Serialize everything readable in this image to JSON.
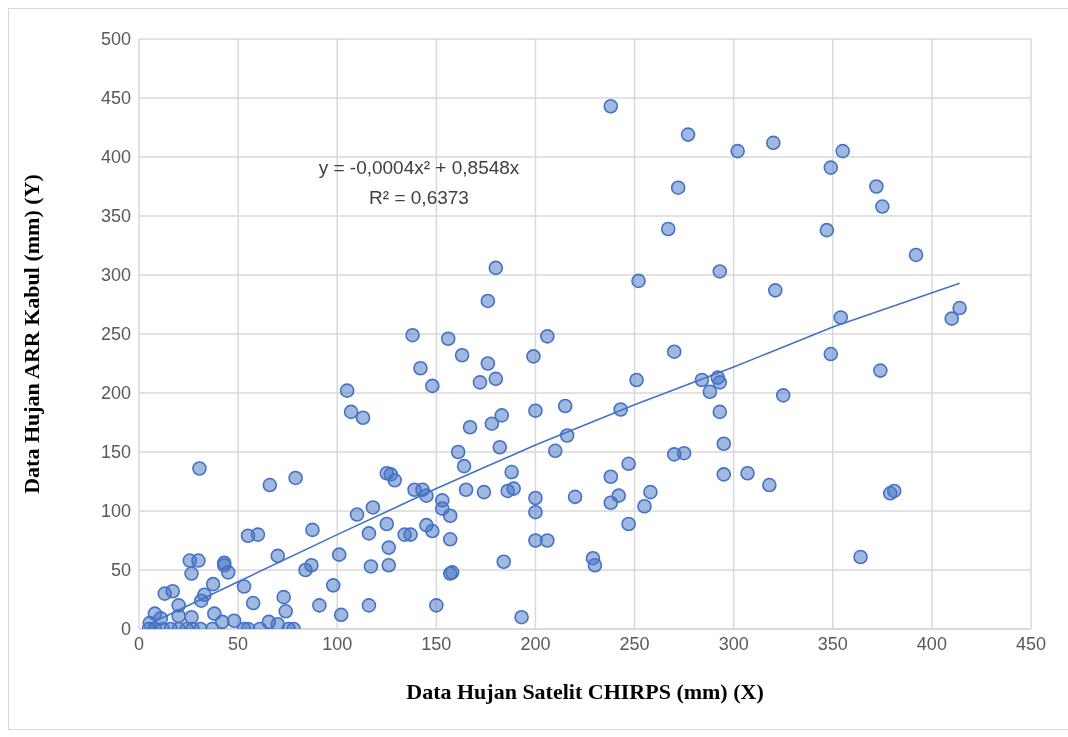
{
  "chart_data": {
    "type": "scatter",
    "xlabel": "Data Hujan Satelit CHIRPS (mm) (X)",
    "ylabel": "Data Hujan ARR Kabul (mm) (Y)",
    "xlim": [
      0,
      450
    ],
    "xticks": [
      0,
      50,
      100,
      150,
      200,
      250,
      300,
      350,
      400,
      450
    ],
    "ylim": [
      0,
      500
    ],
    "yticks": [
      0,
      50,
      100,
      150,
      200,
      250,
      300,
      350,
      400,
      450,
      500
    ],
    "grid": true,
    "marker": "circle",
    "annotations": [
      "y = -0,0004x² + 0,8548x",
      "R² = 0,6373"
    ],
    "series": [
      {
        "color": "#4472c4",
        "x": [
          238,
          277,
          302,
          320,
          355,
          349,
          272,
          372,
          375,
          267,
          347,
          392,
          293,
          180,
          252,
          321,
          176,
          414,
          410,
          354,
          138,
          206,
          156,
          270,
          349,
          163,
          199,
          176,
          142,
          374,
          172,
          180,
          251,
          284,
          292,
          293,
          288,
          148,
          105,
          325,
          107,
          113,
          200,
          243,
          293,
          215,
          183,
          178,
          167,
          216,
          295,
          182,
          210,
          161,
          270,
          275,
          164,
          238,
          30.5,
          66,
          79,
          125,
          127,
          129,
          188,
          295,
          307,
          318,
          165,
          174,
          186,
          189,
          139,
          143,
          145,
          379,
          381,
          258,
          220,
          242,
          238,
          200,
          118,
          153,
          153,
          157,
          255,
          247,
          200,
          110,
          145,
          148,
          125,
          116,
          134,
          137,
          247,
          87.5,
          55,
          60,
          126,
          157,
          200,
          206,
          70,
          101,
          87,
          84,
          117,
          126,
          229,
          230,
          184,
          364,
          25.6,
          30,
          43,
          43,
          26.5,
          45,
          53,
          98,
          37.4,
          13,
          17,
          33,
          31.4,
          73,
          57.6,
          20,
          74,
          91,
          116,
          150,
          157,
          158,
          102,
          193,
          8,
          11,
          38,
          42,
          48,
          26.5,
          20,
          5.4,
          65.5,
          70,
          5,
          8,
          12,
          16,
          20,
          24,
          27,
          31,
          37,
          53,
          55,
          61,
          75.5,
          78
        ],
        "values": [
          443,
          419,
          405,
          412,
          405,
          391,
          374,
          375,
          358,
          339,
          338,
          317,
          303,
          306,
          295,
          287,
          278,
          272,
          263,
          264,
          249,
          248,
          246,
          235,
          233,
          232,
          231,
          225,
          221,
          219,
          209,
          212,
          211,
          211,
          213,
          209,
          201,
          206,
          202,
          198,
          184,
          179,
          185,
          186,
          184,
          189,
          181,
          174,
          171,
          164,
          157,
          154,
          151,
          150,
          148,
          149,
          138,
          129,
          136,
          122,
          128,
          132,
          131,
          126,
          133,
          131,
          132,
          122,
          118,
          116,
          117,
          119,
          118,
          118,
          113,
          115,
          117,
          116,
          112,
          113,
          107,
          111,
          103,
          109,
          102,
          96,
          104,
          140,
          99,
          97,
          88,
          83,
          89,
          81,
          80,
          80,
          89,
          84,
          79,
          80,
          69,
          76,
          75,
          75,
          62,
          63,
          54,
          50,
          53,
          54,
          60,
          54,
          57,
          61,
          58,
          58,
          56,
          54,
          47,
          48,
          36,
          37,
          38,
          30,
          32,
          29,
          24,
          27,
          22,
          20,
          15,
          20,
          20,
          20,
          47,
          48,
          12,
          10,
          13,
          9,
          13,
          6,
          7,
          10,
          11,
          5,
          6,
          4,
          0,
          0,
          0,
          0,
          0,
          0,
          0,
          0,
          0,
          0,
          0,
          0,
          0,
          0
        ]
      },
      {
        "type": "line",
        "marker": "none",
        "color": "#4472c4",
        "x": [
          5,
          50,
          100,
          150,
          200,
          250,
          300,
          350,
          414
        ],
        "values": [
          4,
          40,
          80,
          119,
          156,
          190,
          222,
          256,
          293
        ]
      }
    ]
  }
}
